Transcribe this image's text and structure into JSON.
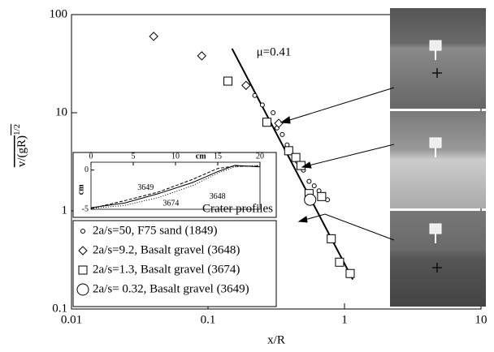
{
  "chart_data": [
    {
      "type": "scatter",
      "x_label": "x/R",
      "y_label": "v/(gR)",
      "y_label_superscript": "1/2",
      "log_x": true,
      "log_y": true,
      "xlim": [
        0.01,
        10
      ],
      "ylim": [
        0.1,
        100
      ],
      "xticks": [
        0.01,
        0.1,
        1,
        10
      ],
      "yticks": [
        0.1,
        1,
        10,
        100
      ],
      "legend": "lower left",
      "series": [
        {
          "name": "2a/s=50, F75 sand (1849)",
          "marker": "small-circle",
          "color": "#000000",
          "x": [
            0.22,
            0.25,
            0.3,
            0.32,
            0.35,
            0.38,
            0.4,
            0.45,
            0.5,
            0.55,
            0.6,
            0.65,
            0.75
          ],
          "values": [
            15,
            12,
            10,
            7,
            6,
            4.7,
            4,
            3.2,
            2.6,
            2,
            1.8,
            1.6,
            1.3
          ]
        },
        {
          "name": "2a/s=9.2, Basalt gravel (3648)",
          "marker": "diamond",
          "color": "#000000",
          "x": [
            0.04,
            0.09,
            0.19,
            0.33
          ],
          "values": [
            60,
            38,
            19,
            7.8
          ]
        },
        {
          "name": "2a/s=1.3, Basalt gravel (3674)",
          "marker": "square",
          "color": "#000000",
          "x": [
            0.14,
            0.27,
            0.39,
            0.44,
            0.48,
            0.55,
            0.68,
            0.8,
            0.92,
            1.1
          ],
          "values": [
            21,
            8,
            4.1,
            3.5,
            2.9,
            1.5,
            1.4,
            0.52,
            0.3,
            0.23
          ]
        },
        {
          "name": "2a/s= 0.32, Basalt gravel (3649)",
          "marker": "large-circle",
          "color": "#000000",
          "x": [
            0.56
          ],
          "values": [
            1.3
          ]
        }
      ],
      "fit_line": {
        "label": "μ=0.41",
        "x": [
          0.15,
          1.15
        ],
        "values": [
          45,
          0.2
        ]
      }
    },
    {
      "type": "line",
      "title": "Crater profiles",
      "x_label": "cm",
      "y_label": "cm",
      "xlim": [
        0,
        20
      ],
      "ylim": [
        -5,
        1
      ],
      "xticks": [
        0,
        5,
        10,
        15,
        20
      ],
      "yticks": [
        -5,
        0
      ],
      "x": [
        0,
        4,
        8,
        12,
        15,
        17,
        20
      ],
      "series": [
        {
          "name": "3649",
          "dash": "4 2",
          "values": [
            -4.9,
            -3.9,
            -2.8,
            -1.2,
            0.2,
            0.5,
            0.5
          ]
        },
        {
          "name": "3648",
          "dash": "none",
          "values": [
            -4.8,
            -4.2,
            -3,
            -1.6,
            -0.2,
            0.6,
            0.4
          ]
        },
        {
          "name": "3674",
          "dash": "1 2",
          "values": [
            -4.9,
            -4.5,
            -3.5,
            -2,
            -0.4,
            0.4,
            0.6
          ]
        }
      ]
    }
  ]
}
